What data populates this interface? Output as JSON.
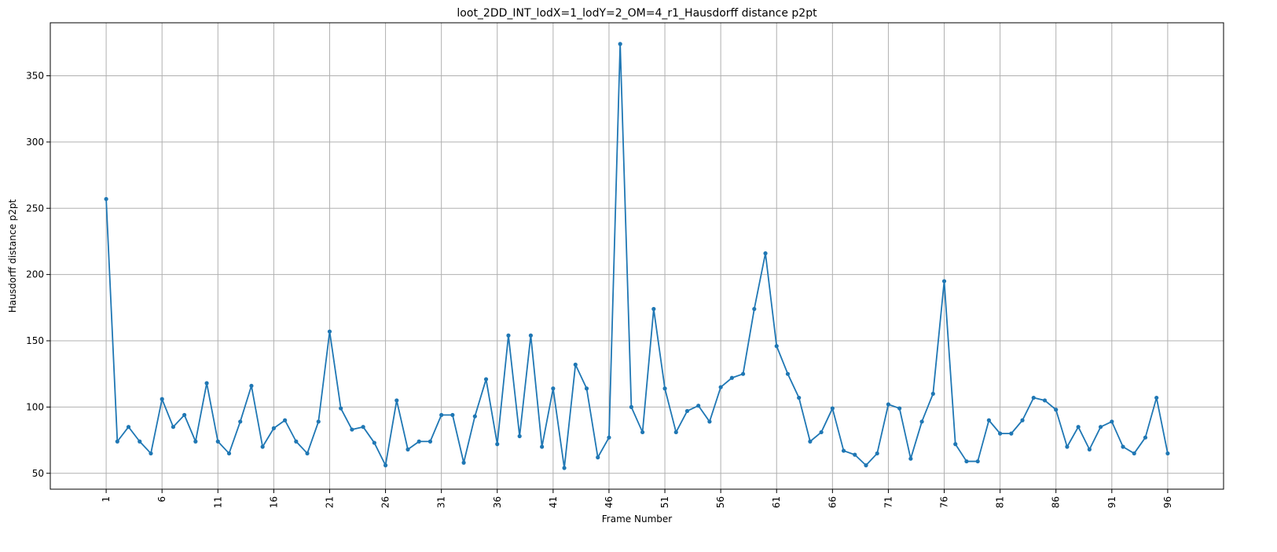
{
  "chart_data": {
    "type": "line",
    "title": "loot_2DD_INT_lodX=1_lodY=2_OM=4_r1_Hausdorff distance p2pt",
    "xlabel": "Frame Number",
    "ylabel": "Hausdorff distance p2pt",
    "xlim": [
      -4,
      101
    ],
    "ylim": [
      38,
      390
    ],
    "x_ticks": [
      1,
      6,
      11,
      16,
      21,
      26,
      31,
      36,
      41,
      46,
      51,
      56,
      61,
      66,
      71,
      76,
      81,
      86,
      91,
      96
    ],
    "y_ticks": [
      50,
      100,
      150,
      200,
      250,
      300,
      350
    ],
    "grid": true,
    "colors": {
      "line": "#1f77b4",
      "grid": "#b0b0b0",
      "axes": "#000000"
    },
    "series": [
      {
        "x": [
          1,
          2,
          3,
          4,
          5,
          6,
          7,
          8,
          9,
          10,
          11,
          12,
          13,
          14,
          15,
          16,
          17,
          18,
          19,
          20,
          21,
          22,
          23,
          24,
          25,
          26,
          27,
          28,
          29,
          30,
          31,
          32,
          33,
          34,
          35,
          36,
          37,
          38,
          39,
          40,
          41,
          42,
          43,
          44,
          45,
          46,
          47,
          48,
          49,
          50,
          51,
          52,
          53,
          54,
          55,
          56,
          57,
          58,
          59,
          60,
          61,
          62,
          63,
          64,
          65,
          66,
          67,
          68,
          69,
          70,
          71,
          72,
          73,
          74,
          75,
          76,
          77,
          78,
          79,
          80,
          81,
          82,
          83,
          84,
          85,
          86,
          87,
          88,
          89,
          90,
          91,
          92,
          93,
          94,
          95,
          96
        ],
        "values": [
          257,
          74,
          85,
          74,
          65,
          106,
          85,
          94,
          74,
          118,
          74,
          65,
          89,
          116,
          70,
          84,
          90,
          74,
          65,
          89,
          157,
          99,
          83,
          85,
          73,
          56,
          105,
          68,
          74,
          74,
          94,
          94,
          58,
          93,
          121,
          72,
          154,
          78,
          154,
          70,
          114,
          54,
          132,
          114,
          62,
          77,
          374,
          100,
          81,
          174,
          114,
          81,
          97,
          101,
          89,
          115,
          122,
          125,
          174,
          216,
          146,
          125,
          107,
          74,
          81,
          99,
          67,
          64,
          56,
          65,
          102,
          99,
          61,
          89,
          110,
          195,
          72,
          59,
          59,
          90,
          80,
          80,
          90,
          107,
          105,
          98,
          70,
          85,
          68,
          85,
          89,
          70,
          65,
          77,
          107,
          65
        ]
      }
    ]
  }
}
